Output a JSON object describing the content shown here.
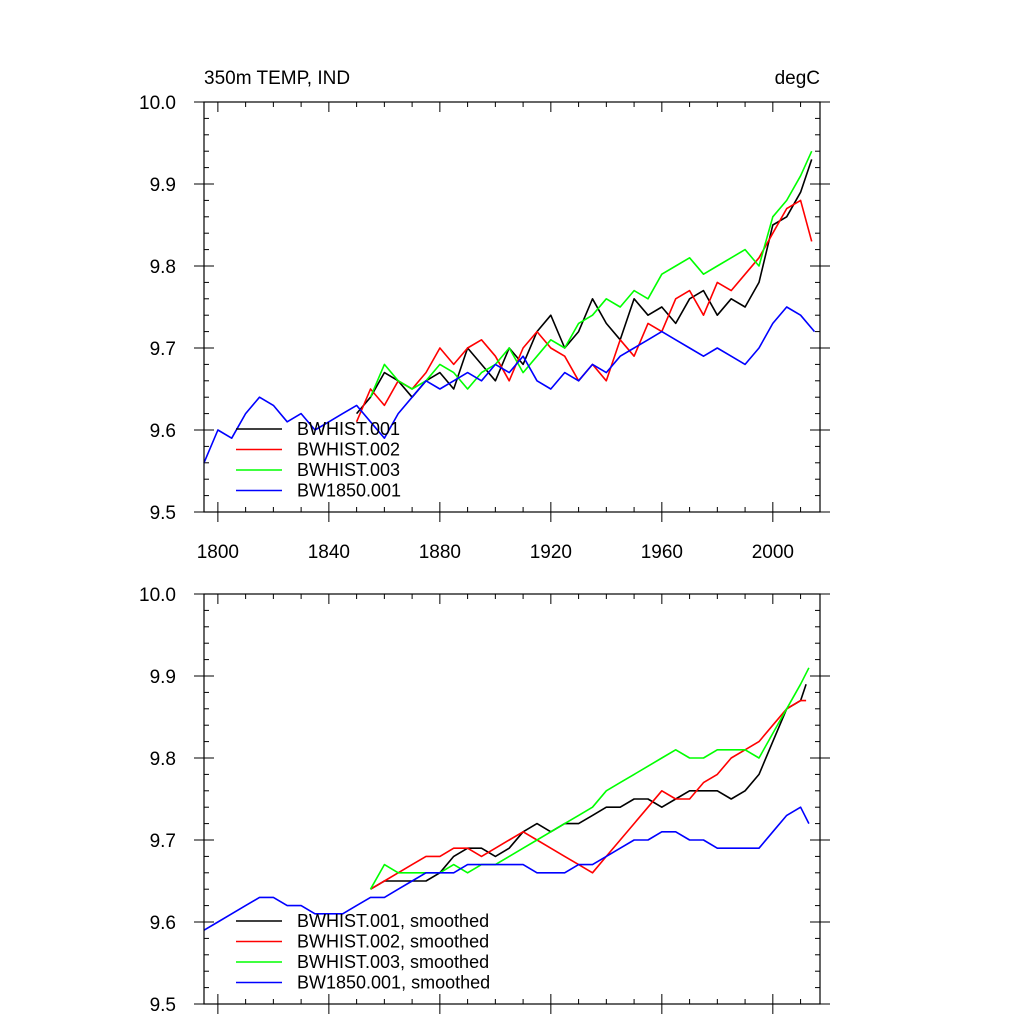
{
  "figure": {
    "title_left": "350m TEMP, IND",
    "title_right": "degC"
  },
  "chart_data": [
    {
      "type": "line",
      "panel": "top",
      "title": "350m TEMP, IND",
      "units": "degC",
      "xlim": [
        1795,
        2017
      ],
      "ylim": [
        9.5,
        10.0
      ],
      "xticks": [
        1800,
        1840,
        1880,
        1920,
        1960,
        2000
      ],
      "xtick_labels": [
        "1800",
        "1840",
        "1880",
        "1920",
        "1960",
        "2000"
      ],
      "yticks": [
        9.5,
        9.6,
        9.7,
        9.8,
        9.9,
        10.0
      ],
      "ytick_labels": [
        "9.5",
        "9.6",
        "9.7",
        "9.8",
        "9.9",
        "10.0"
      ],
      "legend": [
        "BWHIST.001",
        "BWHIST.002",
        "BWHIST.003",
        "BW1850.001"
      ],
      "legend_location": "lower-left",
      "series": [
        {
          "name": "BWHIST.001",
          "color": "#000000",
          "x": [
            1850,
            1855,
            1860,
            1865,
            1870,
            1875,
            1880,
            1885,
            1890,
            1895,
            1900,
            1905,
            1910,
            1915,
            1920,
            1925,
            1930,
            1935,
            1940,
            1945,
            1950,
            1955,
            1960,
            1965,
            1970,
            1975,
            1980,
            1985,
            1990,
            1995,
            2000,
            2005,
            2010,
            2014
          ],
          "y": [
            9.62,
            9.64,
            9.67,
            9.66,
            9.64,
            9.66,
            9.67,
            9.65,
            9.7,
            9.68,
            9.66,
            9.7,
            9.68,
            9.72,
            9.74,
            9.7,
            9.72,
            9.76,
            9.73,
            9.71,
            9.76,
            9.74,
            9.75,
            9.73,
            9.76,
            9.77,
            9.74,
            9.76,
            9.75,
            9.78,
            9.85,
            9.86,
            9.89,
            9.93
          ]
        },
        {
          "name": "BWHIST.002",
          "color": "#ff0000",
          "x": [
            1850,
            1855,
            1860,
            1865,
            1870,
            1875,
            1880,
            1885,
            1890,
            1895,
            1900,
            1905,
            1910,
            1915,
            1920,
            1925,
            1930,
            1935,
            1940,
            1945,
            1950,
            1955,
            1960,
            1965,
            1970,
            1975,
            1980,
            1985,
            1990,
            1995,
            2000,
            2005,
            2010,
            2014
          ],
          "y": [
            9.61,
            9.65,
            9.63,
            9.66,
            9.65,
            9.67,
            9.7,
            9.68,
            9.7,
            9.71,
            9.69,
            9.66,
            9.7,
            9.72,
            9.7,
            9.69,
            9.66,
            9.68,
            9.66,
            9.71,
            9.69,
            9.73,
            9.72,
            9.76,
            9.77,
            9.74,
            9.78,
            9.77,
            9.79,
            9.81,
            9.84,
            9.87,
            9.88,
            9.83
          ]
        },
        {
          "name": "BWHIST.003",
          "color": "#00ff00",
          "x": [
            1855,
            1860,
            1865,
            1870,
            1875,
            1880,
            1885,
            1890,
            1895,
            1900,
            1905,
            1910,
            1915,
            1920,
            1925,
            1930,
            1935,
            1940,
            1945,
            1950,
            1955,
            1960,
            1965,
            1970,
            1975,
            1980,
            1985,
            1990,
            1995,
            2000,
            2005,
            2010,
            2014
          ],
          "y": [
            9.64,
            9.68,
            9.66,
            9.65,
            9.66,
            9.68,
            9.67,
            9.65,
            9.67,
            9.68,
            9.7,
            9.67,
            9.69,
            9.71,
            9.7,
            9.73,
            9.74,
            9.76,
            9.75,
            9.77,
            9.76,
            9.79,
            9.8,
            9.81,
            9.79,
            9.8,
            9.81,
            9.82,
            9.8,
            9.86,
            9.88,
            9.91,
            9.94
          ]
        },
        {
          "name": "BW1850.001",
          "color": "#0000ff",
          "x": [
            1795,
            1800,
            1805,
            1810,
            1815,
            1820,
            1825,
            1830,
            1835,
            1840,
            1845,
            1850,
            1855,
            1860,
            1865,
            1870,
            1875,
            1880,
            1885,
            1890,
            1895,
            1900,
            1905,
            1910,
            1915,
            1920,
            1925,
            1930,
            1935,
            1940,
            1945,
            1950,
            1955,
            1960,
            1965,
            1970,
            1975,
            1980,
            1985,
            1990,
            1995,
            2000,
            2005,
            2010,
            2015
          ],
          "y": [
            9.56,
            9.6,
            9.59,
            9.62,
            9.64,
            9.63,
            9.61,
            9.62,
            9.6,
            9.61,
            9.62,
            9.63,
            9.61,
            9.59,
            9.62,
            9.64,
            9.66,
            9.65,
            9.66,
            9.67,
            9.66,
            9.68,
            9.67,
            9.69,
            9.66,
            9.65,
            9.67,
            9.66,
            9.68,
            9.67,
            9.69,
            9.7,
            9.71,
            9.72,
            9.71,
            9.7,
            9.69,
            9.7,
            9.69,
            9.68,
            9.7,
            9.73,
            9.75,
            9.74,
            9.72
          ]
        }
      ]
    },
    {
      "type": "line",
      "panel": "bottom",
      "title": "",
      "xlim": [
        1795,
        2017
      ],
      "ylim": [
        9.5,
        10.0
      ],
      "xticks": [
        1800,
        1840,
        1880,
        1920,
        1960,
        2000
      ],
      "yticks": [
        9.5,
        9.6,
        9.7,
        9.8,
        9.9,
        10.0
      ],
      "ytick_labels": [
        "9.5",
        "9.6",
        "9.7",
        "9.8",
        "9.9",
        "10.0"
      ],
      "legend": [
        "BWHIST.001, smoothed",
        "BWHIST.002, smoothed",
        "BWHIST.003, smoothed",
        "BW1850.001, smoothed"
      ],
      "legend_location": "lower-left",
      "series": [
        {
          "name": "BWHIST.001, smoothed",
          "color": "#000000",
          "x": [
            1855,
            1860,
            1865,
            1870,
            1875,
            1880,
            1885,
            1890,
            1895,
            1900,
            1905,
            1910,
            1915,
            1920,
            1925,
            1930,
            1935,
            1940,
            1945,
            1950,
            1955,
            1960,
            1965,
            1970,
            1975,
            1980,
            1985,
            1990,
            1995,
            2000,
            2005,
            2010,
            2012
          ],
          "y": [
            9.64,
            9.65,
            9.65,
            9.65,
            9.65,
            9.66,
            9.68,
            9.69,
            9.69,
            9.68,
            9.69,
            9.71,
            9.72,
            9.71,
            9.72,
            9.72,
            9.73,
            9.74,
            9.74,
            9.75,
            9.75,
            9.74,
            9.75,
            9.76,
            9.76,
            9.76,
            9.75,
            9.76,
            9.78,
            9.82,
            9.86,
            9.87,
            9.89
          ]
        },
        {
          "name": "BWHIST.002, smoothed",
          "color": "#ff0000",
          "x": [
            1855,
            1860,
            1865,
            1870,
            1875,
            1880,
            1885,
            1890,
            1895,
            1900,
            1905,
            1910,
            1915,
            1920,
            1925,
            1930,
            1935,
            1940,
            1945,
            1950,
            1955,
            1960,
            1965,
            1970,
            1975,
            1980,
            1985,
            1990,
            1995,
            2000,
            2005,
            2010,
            2012
          ],
          "y": [
            9.64,
            9.65,
            9.66,
            9.67,
            9.68,
            9.68,
            9.69,
            9.69,
            9.68,
            9.69,
            9.7,
            9.71,
            9.7,
            9.69,
            9.68,
            9.67,
            9.66,
            9.68,
            9.7,
            9.72,
            9.74,
            9.76,
            9.75,
            9.75,
            9.77,
            9.78,
            9.8,
            9.81,
            9.82,
            9.84,
            9.86,
            9.87,
            9.87
          ]
        },
        {
          "name": "BWHIST.003, smoothed",
          "color": "#00ff00",
          "x": [
            1855,
            1860,
            1865,
            1870,
            1875,
            1880,
            1885,
            1890,
            1895,
            1900,
            1905,
            1910,
            1915,
            1920,
            1925,
            1930,
            1935,
            1940,
            1945,
            1950,
            1955,
            1960,
            1965,
            1970,
            1975,
            1980,
            1985,
            1990,
            1995,
            2000,
            2005,
            2010,
            2013
          ],
          "y": [
            9.64,
            9.67,
            9.66,
            9.66,
            9.66,
            9.66,
            9.67,
            9.66,
            9.67,
            9.67,
            9.68,
            9.69,
            9.7,
            9.71,
            9.72,
            9.73,
            9.74,
            9.76,
            9.77,
            9.78,
            9.79,
            9.8,
            9.81,
            9.8,
            9.8,
            9.81,
            9.81,
            9.81,
            9.8,
            9.83,
            9.86,
            9.89,
            9.91
          ]
        },
        {
          "name": "BW1850.001, smoothed",
          "color": "#0000ff",
          "x": [
            1795,
            1800,
            1805,
            1810,
            1815,
            1820,
            1825,
            1830,
            1835,
            1840,
            1845,
            1850,
            1855,
            1860,
            1865,
            1870,
            1875,
            1880,
            1885,
            1890,
            1895,
            1900,
            1905,
            1910,
            1915,
            1920,
            1925,
            1930,
            1935,
            1940,
            1945,
            1950,
            1955,
            1960,
            1965,
            1970,
            1975,
            1980,
            1985,
            1990,
            1995,
            2000,
            2005,
            2010,
            2013
          ],
          "y": [
            9.59,
            9.6,
            9.61,
            9.62,
            9.63,
            9.63,
            9.62,
            9.62,
            9.61,
            9.61,
            9.61,
            9.62,
            9.63,
            9.63,
            9.64,
            9.65,
            9.66,
            9.66,
            9.66,
            9.67,
            9.67,
            9.67,
            9.67,
            9.67,
            9.66,
            9.66,
            9.66,
            9.67,
            9.67,
            9.68,
            9.69,
            9.7,
            9.7,
            9.71,
            9.71,
            9.7,
            9.7,
            9.69,
            9.69,
            9.69,
            9.69,
            9.71,
            9.73,
            9.74,
            9.72
          ]
        }
      ]
    }
  ]
}
